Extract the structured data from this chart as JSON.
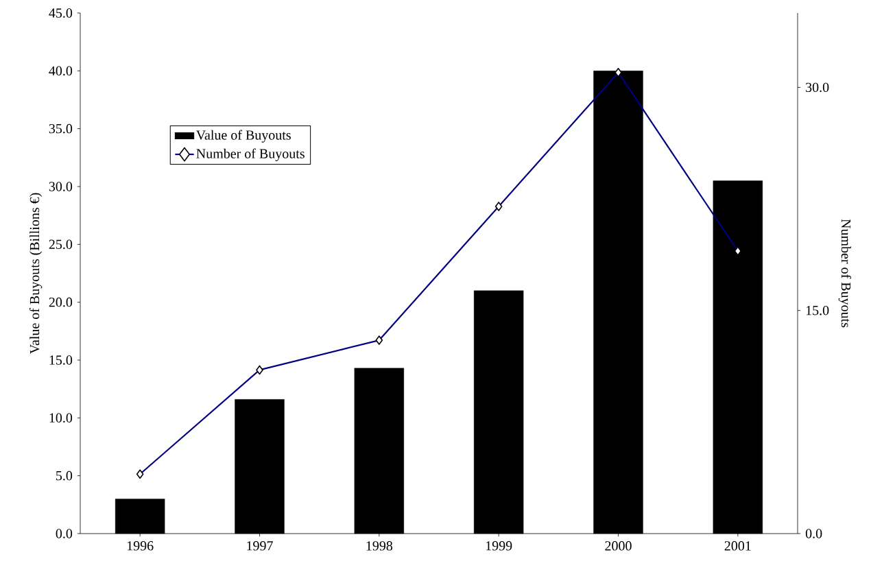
{
  "chart_data": {
    "type": "bar",
    "ylabel": "Value of Buyouts (Billions €)",
    "y2label": "Number of Buyouts",
    "categories": [
      "1996",
      "1997",
      "1998",
      "1999",
      "2000",
      "2001"
    ],
    "series": [
      {
        "name": "Value of Buyouts",
        "color": "#000000",
        "values": [
          3.0,
          11.6,
          14.3,
          21.0,
          40.0,
          30.5
        ]
      },
      {
        "name": "Number of Buyouts",
        "type": "line",
        "axis": "y2",
        "color": "#000080",
        "values": [
          4.0,
          11.0,
          13.0,
          22.0,
          31.0,
          19.0
        ]
      }
    ],
    "ylim": [
      0,
      45
    ],
    "yticks": [
      {
        "value": 0,
        "label": "0.0"
      },
      {
        "value": 5,
        "label": "5.0"
      },
      {
        "value": 10,
        "label": "10.0"
      },
      {
        "value": 15,
        "label": "15.0"
      },
      {
        "value": 20,
        "label": "20.0"
      },
      {
        "value": 25,
        "label": "25.0"
      },
      {
        "value": 30,
        "label": "30.0"
      },
      {
        "value": 35,
        "label": "35.0"
      },
      {
        "value": 40,
        "label": "40.0"
      },
      {
        "value": 45,
        "label": "45.0"
      }
    ],
    "y2lim": [
      0,
      35
    ],
    "y2ticks": [
      {
        "value": 0,
        "label": "0.0"
      },
      {
        "value": 15,
        "label": "15.0"
      },
      {
        "value": 30,
        "label": "30.0"
      }
    ],
    "legend": "top left",
    "marker": "diamond",
    "grid": false
  }
}
